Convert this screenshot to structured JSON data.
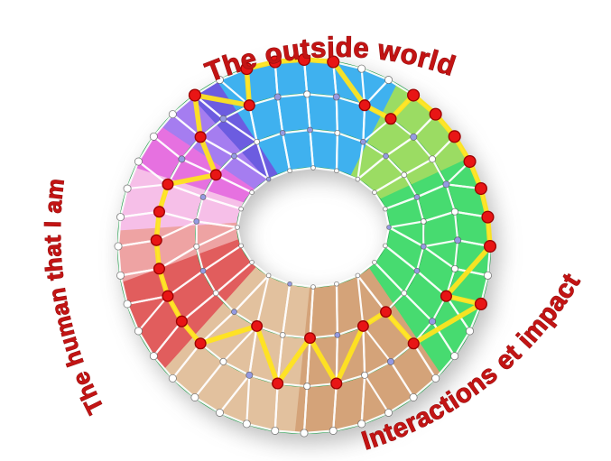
{
  "diagram": {
    "background": "#ffffff",
    "labels": {
      "top": "The outside world",
      "left": "The human that I am",
      "bottom_right": "Interactions et impact",
      "color": "#c31414"
    },
    "sectors": [
      {
        "name": "sky-blue",
        "start": -28,
        "end": 30,
        "color": "#3fb1ef"
      },
      {
        "name": "green-light",
        "start": 30,
        "end": 62,
        "color": "#9bdc63"
      },
      {
        "name": "green",
        "start": 62,
        "end": 133,
        "color": "#47db70"
      },
      {
        "name": "tan-dark",
        "start": 133,
        "end": 183,
        "color": "#d4a379"
      },
      {
        "name": "tan-light",
        "start": 183,
        "end": 229,
        "color": "#e2c19e"
      },
      {
        "name": "red",
        "start": 229,
        "end": 259,
        "color": "#e15d5d"
      },
      {
        "name": "red-light",
        "start": 259,
        "end": 275,
        "color": "#eea3a3"
      },
      {
        "name": "pink-light",
        "start": 275,
        "end": 295,
        "color": "#f6bfe8"
      },
      {
        "name": "orchid",
        "start": 295,
        "end": 310,
        "color": "#e671e0"
      },
      {
        "name": "purple-light",
        "start": 310,
        "end": 323,
        "color": "#a57df0"
      },
      {
        "name": "purple-dark",
        "start": 323,
        "end": 332,
        "color": "#6c5ce0"
      }
    ],
    "rings": [
      {
        "name": "ring-inner",
        "t": 0.0,
        "count": 20,
        "dot_radius": 2.4,
        "pattern": "wwwwwpwwwwwpwwwwwwpw"
      },
      {
        "name": "ring-mid-1",
        "t": 0.35,
        "count": 26,
        "dot_radius": 3.0,
        "pattern": "pwppwpwppwpwppwppwpwppwpwp"
      },
      {
        "name": "ring-mid-2",
        "t": 0.68,
        "count": 32,
        "dot_radius": 3.6,
        "pattern": "wpwppwpwpwppwpwpwppwpwpwpwppwpwp"
      },
      {
        "name": "ring-outer",
        "t": 1.0,
        "count": 40,
        "dot_radius": 4.1,
        "pattern": "wwwwwwwwwwwwwwwwwwwwwwwwwwwwwwwwwwwwwwww"
      }
    ],
    "node_colors": {
      "w": "#ffffff",
      "p": "#959ae2",
      "red": "#e81515"
    },
    "node_stroke": "#555555",
    "red_node_stroke": "#9b0000",
    "ring_line_color": "#1b9a45",
    "mesh_line_color": "#ffffff",
    "yellow_path_color": "#ffe41f",
    "yellow_path": [
      [
        3,
        38
      ],
      [
        3,
        39
      ],
      [
        3,
        0
      ],
      [
        3,
        1
      ],
      [
        2,
        2
      ],
      [
        2,
        3
      ],
      [
        3,
        4
      ],
      [
        3,
        5
      ],
      [
        3,
        6
      ],
      [
        3,
        7
      ],
      [
        3,
        8
      ],
      [
        3,
        9
      ],
      [
        3,
        10
      ],
      [
        2,
        10
      ],
      [
        3,
        12
      ],
      [
        2,
        12
      ],
      [
        1,
        10
      ],
      [
        1,
        11
      ],
      [
        2,
        15
      ],
      [
        1,
        13
      ],
      [
        2,
        17
      ],
      [
        1,
        15
      ],
      [
        2,
        20
      ],
      [
        2,
        21
      ],
      [
        2,
        22
      ],
      [
        2,
        23
      ],
      [
        2,
        24
      ],
      [
        2,
        25
      ],
      [
        2,
        26
      ],
      [
        1,
        22
      ],
      [
        2,
        28
      ],
      [
        3,
        36
      ],
      [
        2,
        30
      ]
    ]
  }
}
